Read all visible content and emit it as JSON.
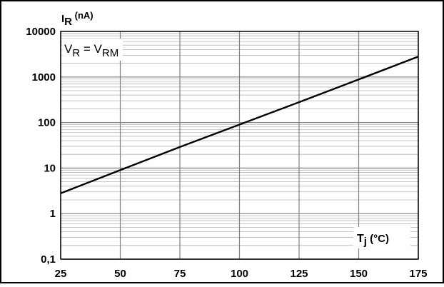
{
  "chart_data": {
    "type": "line",
    "xlabel": {
      "main": "T",
      "sub": "j",
      "unit": " (°C)"
    },
    "ylabel": {
      "main": "I",
      "sub": "R",
      "unit": " (nA)"
    },
    "annotation": {
      "a": "V",
      "a_sub": "R",
      "eq": " = V",
      "b_sub": "RM"
    },
    "x_scale": "linear",
    "y_scale": "log",
    "xlim": [
      25,
      175
    ],
    "ylim": [
      0.1,
      10000
    ],
    "x_ticks": [
      "25",
      "50",
      "75",
      "100",
      "125",
      "150",
      "175"
    ],
    "y_ticks": [
      "0,1",
      "1",
      "10",
      "100",
      "1000",
      "10000"
    ],
    "grid": true,
    "series": [
      {
        "x": [
          25,
          50,
          75,
          100,
          125,
          150,
          175
        ],
        "y": [
          2.8,
          9,
          29,
          90,
          280,
          880,
          2800
        ]
      }
    ],
    "colors": {
      "line": "#000000",
      "grid": "#b4b4b4",
      "frame": "#000000"
    }
  }
}
